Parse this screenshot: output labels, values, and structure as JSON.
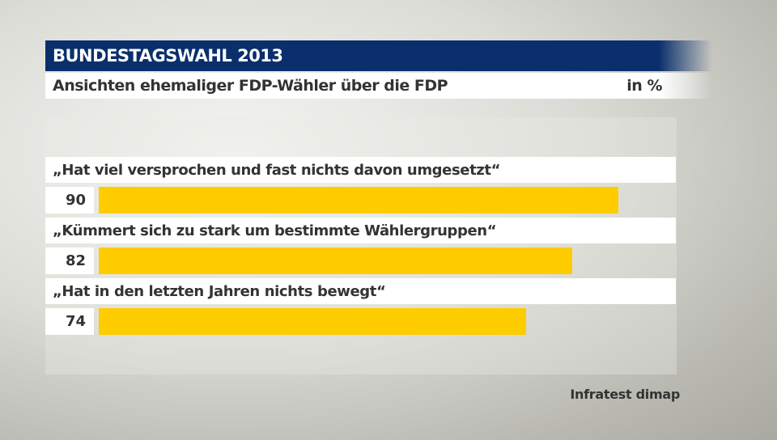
{
  "header": {
    "title": "BUNDESTAGSWAHL 2013",
    "subtitle": "Ansichten ehemaliger FDP-Wähler über die FDP",
    "unit": "in %"
  },
  "chart_data": {
    "type": "bar",
    "orientation": "horizontal",
    "title": "Ansichten ehemaliger FDP-Wähler über die FDP",
    "categories": [
      "„Hat viel versprochen und fast nichts davon umgesetzt“",
      "„Kümmert sich zu stark um bestimmte Wählergruppen“",
      "„Hat in den letzten Jahren nichts bewegt“"
    ],
    "values": [
      90,
      82,
      74
    ],
    "value_labels": [
      "90",
      "82",
      "74"
    ],
    "xlim": [
      0,
      100
    ],
    "grid": false,
    "bar_color": "#ffcc00"
  },
  "source": "Infratest dimap",
  "colors": {
    "header": "#0a2f6c",
    "bar": "#ffcc00"
  }
}
